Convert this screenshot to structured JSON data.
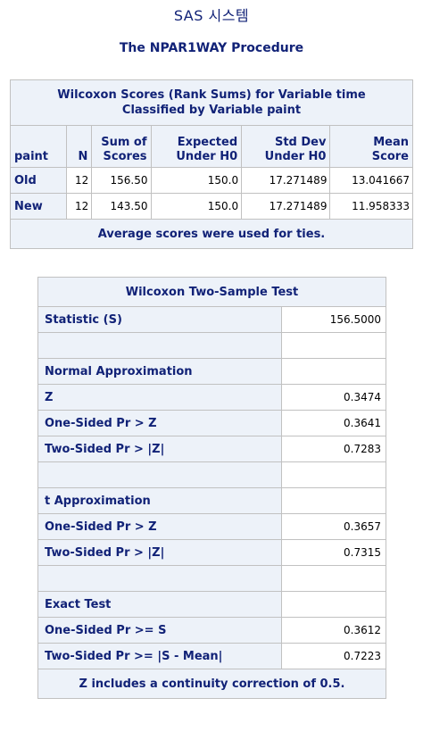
{
  "header": {
    "system_title": "SAS 시스템",
    "procedure_title": "The NPAR1WAY Procedure"
  },
  "scores_table": {
    "caption_line1": "Wilcoxon Scores (Rank Sums) for Variable time",
    "caption_line2": "Classified by Variable paint",
    "columns": {
      "paint": "paint",
      "n": "N",
      "sum_line1": "Sum of",
      "sum_line2": "Scores",
      "expected_line1": "Expected",
      "expected_line2": "Under H0",
      "stddev_line1": "Std Dev",
      "stddev_line2": "Under H0",
      "mean_line1": "Mean",
      "mean_line2": "Score"
    },
    "rows": [
      {
        "paint": "Old",
        "n": "12",
        "sum": "156.50",
        "expected": "150.0",
        "stddev": "17.271489",
        "mean": "13.041667"
      },
      {
        "paint": "New",
        "n": "12",
        "sum": "143.50",
        "expected": "150.0",
        "stddev": "17.271489",
        "mean": "11.958333"
      }
    ],
    "footnote": "Average scores were used for ties."
  },
  "test_table": {
    "caption": "Wilcoxon Two-Sample Test",
    "rows": [
      {
        "label": "Statistic (S)",
        "value": "156.5000"
      },
      {
        "label": "",
        "value": ""
      },
      {
        "label": "Normal Approximation",
        "value": ""
      },
      {
        "label": "Z",
        "value": "0.3474"
      },
      {
        "label": "One-Sided Pr >  Z",
        "value": "0.3641"
      },
      {
        "label": "Two-Sided Pr > |Z|",
        "value": "0.7283"
      },
      {
        "label": "",
        "value": ""
      },
      {
        "label": "t Approximation",
        "value": ""
      },
      {
        "label": "One-Sided Pr >  Z",
        "value": "0.3657"
      },
      {
        "label": "Two-Sided Pr > |Z|",
        "value": "0.7315"
      },
      {
        "label": "",
        "value": ""
      },
      {
        "label": "Exact Test",
        "value": ""
      },
      {
        "label": "One-Sided Pr >=  S",
        "value": "0.3612"
      },
      {
        "label": "Two-Sided Pr >= |S - Mean|",
        "value": "0.7223"
      }
    ],
    "footnote": "Z includes a continuity correction of 0.5."
  }
}
